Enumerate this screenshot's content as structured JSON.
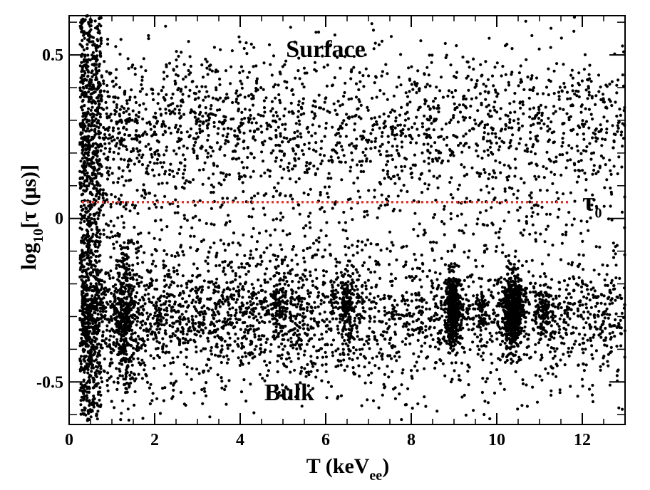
{
  "chart_data": {
    "type": "scatter",
    "title": "",
    "xlabel": "T (keV",
    "xlabel_sub": "ee",
    "xlabel_end": ")",
    "ylabel_pre": "log",
    "ylabel_sub": "10",
    "ylabel_post": "[τ (μs)]",
    "xlim": [
      0,
      13
    ],
    "ylim": [
      -0.63,
      0.62
    ],
    "xticks": [
      0,
      2,
      4,
      6,
      8,
      10,
      12
    ],
    "xtick_labels": [
      "0",
      "2",
      "4",
      "6",
      "8",
      "10",
      "12"
    ],
    "yticks": [
      -0.5,
      0,
      0.5
    ],
    "ytick_labels": [
      "-0.5",
      "0",
      "0.5"
    ],
    "grid": false,
    "point_color": "#000000",
    "reference_line": {
      "y": 0.05,
      "x_range": [
        0.3,
        11.7
      ],
      "color": "#e8322a",
      "style": "dotted",
      "label": "τ",
      "label_sub": "0"
    },
    "annotations": [
      {
        "text": "Surface",
        "x": 6.0,
        "y": 0.52
      },
      {
        "text": "Bulk",
        "x": 5.15,
        "y": -0.53
      }
    ],
    "regions": [
      {
        "name": "surface band",
        "x_range": [
          0.3,
          13.0
        ],
        "y_center": 0.27,
        "y_spread": 0.12,
        "count": 2100
      },
      {
        "name": "bulk band",
        "x_range": [
          0.3,
          13.0
        ],
        "y_center": -0.28,
        "y_spread": 0.08,
        "count": 2400
      },
      {
        "name": "low-energy column",
        "x_range": [
          0.25,
          0.75
        ],
        "y_range": [
          -0.62,
          0.62
        ],
        "count": 900
      },
      {
        "name": "bulk tail",
        "x_range": [
          0.3,
          13.0
        ],
        "y_center": -0.42,
        "y_spread": 0.09,
        "count": 700
      },
      {
        "name": "1.3 keV line",
        "x": 1.3,
        "x_spread": 0.12,
        "y_center": -0.28,
        "y_spread": 0.12,
        "count": 300
      },
      {
        "name": "4.9 keV line",
        "x": 4.9,
        "x_spread": 0.1,
        "y_center": -0.27,
        "y_spread": 0.05,
        "count": 70
      },
      {
        "name": "6.5 keV line",
        "x": 6.5,
        "x_spread": 0.1,
        "y_center": -0.28,
        "y_spread": 0.06,
        "count": 130
      },
      {
        "name": "8.98 keV line",
        "x": 8.98,
        "x_spread": 0.09,
        "y_center": -0.28,
        "y_spread": 0.055,
        "count": 420
      },
      {
        "name": "10.37 keV line",
        "x": 10.37,
        "x_spread": 0.1,
        "y_center": -0.28,
        "y_spread": 0.055,
        "count": 650
      },
      {
        "name": "9.66 keV line",
        "x": 9.66,
        "x_spread": 0.08,
        "y_center": -0.28,
        "y_spread": 0.04,
        "count": 60
      },
      {
        "name": "11.1 keV line",
        "x": 11.1,
        "x_spread": 0.08,
        "y_center": -0.28,
        "y_spread": 0.04,
        "count": 90
      },
      {
        "name": "transition region",
        "x_range": [
          0.3,
          13.0
        ],
        "y_range": [
          -0.15,
          0.08
        ],
        "count": 380
      }
    ]
  }
}
